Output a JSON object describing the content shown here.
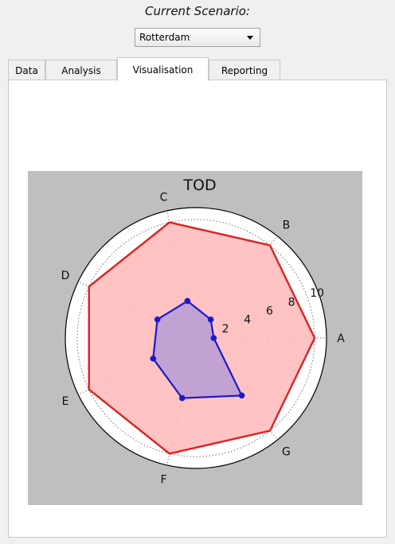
{
  "header": {
    "scenario_label": "Current Scenario:"
  },
  "scenario_select": {
    "value": "Rotterdam"
  },
  "tabs": [
    {
      "label": "Data",
      "active": false
    },
    {
      "label": "Analysis",
      "active": false
    },
    {
      "label": "Visualisation",
      "active": true
    },
    {
      "label": "Reporting",
      "active": false
    }
  ],
  "colors": {
    "outer_fill": "#ffbdbd",
    "outer_stroke": "#dd2222",
    "inner_fill": "#b79bd6",
    "inner_stroke": "#1a1acc",
    "plot_bg": "#bfbfbf"
  },
  "chart_data": {
    "type": "radar",
    "title": "TOD",
    "categories": [
      "A",
      "B",
      "C",
      "D",
      "E",
      "F",
      "G"
    ],
    "radial_ticks": [
      2,
      4,
      6,
      8,
      10
    ],
    "rlim": [
      0,
      11
    ],
    "grid": true,
    "series": [
      {
        "values": [
          10,
          10,
          10,
          10,
          10,
          10,
          10
        ]
      },
      {
        "values": [
          1.5,
          2.0,
          3.2,
          3.6,
          4.0,
          5.2,
          6.2
        ]
      }
    ]
  }
}
